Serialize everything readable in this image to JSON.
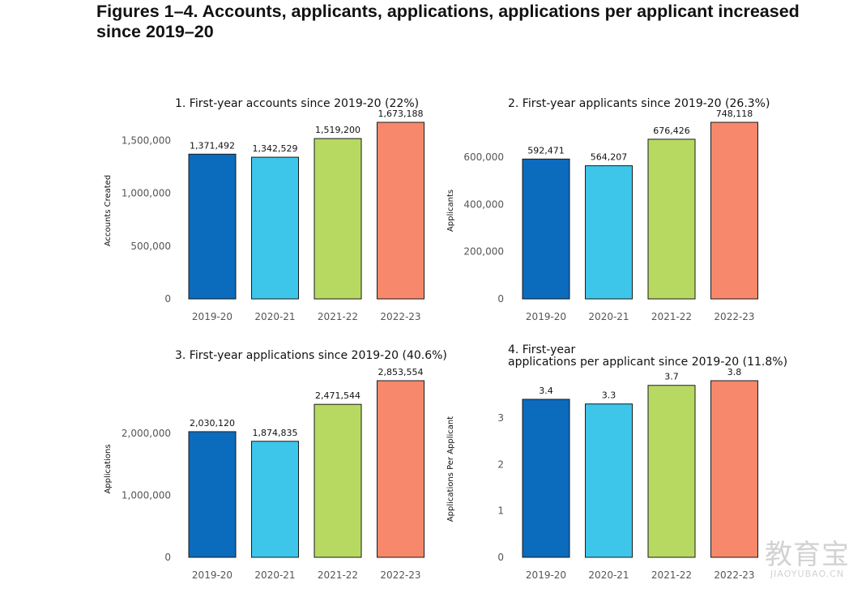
{
  "title": "Figures 1–4. Accounts, applicants, applications, applications per applicant increased since 2019–20",
  "watermark": {
    "cn": "教育宝",
    "en": "JIAOYUBAO.CN"
  },
  "colors": [
    "#0b6bbd",
    "#3ec5ea",
    "#b7d962",
    "#f7886b"
  ],
  "chart_data": [
    {
      "type": "bar",
      "title_lines": [
        "1. First-year accounts since 2019-20 (22%)"
      ],
      "categories": [
        "2019-20",
        "2020-21",
        "2021-22",
        "2022-23"
      ],
      "values": [
        1371492,
        1342529,
        1519200,
        1673188
      ],
      "value_labels": [
        "1,371,492",
        "1,342,529",
        "1,519,200",
        "1,673,188"
      ],
      "ylabel": "Accounts Created",
      "ylim": [
        0,
        1673188
      ],
      "yticks": [
        0,
        500000,
        1000000,
        1500000
      ],
      "ytick_labels": [
        "0",
        "500,000",
        "1,000,000",
        "1,500,000"
      ],
      "grid": false
    },
    {
      "type": "bar",
      "title_lines": [
        "2. First-year applicants since 2019-20 (26.3%)"
      ],
      "categories": [
        "2019-20",
        "2020-21",
        "2021-22",
        "2022-23"
      ],
      "values": [
        592471,
        564207,
        676426,
        748118
      ],
      "value_labels": [
        "592,471",
        "564,207",
        "676,426",
        "748,118"
      ],
      "ylabel": "Applicants",
      "ylim": [
        0,
        748118
      ],
      "yticks": [
        0,
        200000,
        400000,
        600000
      ],
      "ytick_labels": [
        "0",
        "200,000",
        "400,000",
        "600,000"
      ],
      "grid": false
    },
    {
      "type": "bar",
      "title_lines": [
        "3. First-year applications since 2019-20 (40.6%)"
      ],
      "categories": [
        "2019-20",
        "2020-21",
        "2021-22",
        "2022-23"
      ],
      "values": [
        2030120,
        1874835,
        2471544,
        2853554
      ],
      "value_labels": [
        "2,030,120",
        "1,874,835",
        "2,471,544",
        "2,853,554"
      ],
      "ylabel": "Applications",
      "ylim": [
        0,
        2853554
      ],
      "yticks": [
        0,
        1000000,
        2000000
      ],
      "ytick_labels": [
        "0",
        "1,000,000",
        "2,000,000"
      ],
      "grid": false
    },
    {
      "type": "bar",
      "title_lines": [
        "4. First-year",
        "applications per applicant since 2019-20 (11.8%)"
      ],
      "categories": [
        "2019-20",
        "2020-21",
        "2021-22",
        "2022-23"
      ],
      "values": [
        3.4,
        3.3,
        3.7,
        3.8
      ],
      "value_labels": [
        "3.4",
        "3.3",
        "3.7",
        "3.8"
      ],
      "ylabel": "Applications Per Applicant",
      "ylim": [
        0,
        3.8
      ],
      "yticks": [
        0,
        1,
        2,
        3
      ],
      "ytick_labels": [
        "0",
        "1",
        "2",
        "3"
      ],
      "grid": false
    }
  ]
}
